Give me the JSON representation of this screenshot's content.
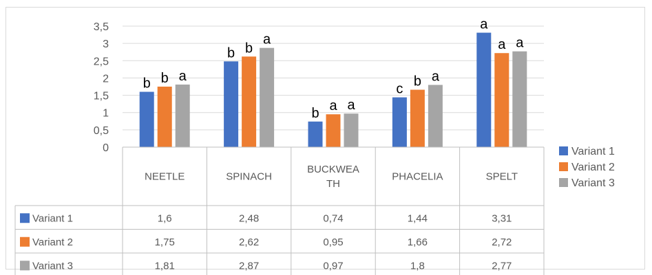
{
  "chart_data": {
    "type": "bar",
    "categories": [
      "NEETLE",
      "SPINACH",
      "BUCKWEATH",
      "PHACELIA",
      "SPELT"
    ],
    "category_display": [
      [
        "NEETLE"
      ],
      [
        "SPINACH"
      ],
      [
        "BUCKWEA",
        "TH"
      ],
      [
        "PHACELIA"
      ],
      [
        "SPELT"
      ]
    ],
    "series": [
      {
        "name": "Variant 1",
        "color": "#4472c4",
        "values": [
          1.6,
          2.48,
          0.74,
          1.44,
          3.31
        ],
        "labels": [
          "1,6",
          "2,48",
          "0,74",
          "1,44",
          "3,31"
        ],
        "significance": [
          "b",
          "b",
          "b",
          "c",
          "a"
        ]
      },
      {
        "name": "Variant 2",
        "color": "#ed7d31",
        "values": [
          1.75,
          2.62,
          0.95,
          1.66,
          2.72
        ],
        "labels": [
          "1,75",
          "2,62",
          "0,95",
          "1,66",
          "2,72"
        ],
        "significance": [
          "b",
          "b",
          "a",
          "b",
          "a"
        ]
      },
      {
        "name": "Variant 3",
        "color": "#a5a5a5",
        "values": [
          1.81,
          2.87,
          0.97,
          1.8,
          2.77
        ],
        "labels": [
          "1,81",
          "2,87",
          "0,97",
          "1,8",
          "2,77"
        ],
        "significance": [
          "a",
          "a",
          "a",
          "a",
          "a"
        ]
      }
    ],
    "ylim": [
      0,
      3.5
    ],
    "yticks": [
      0,
      0.5,
      1,
      1.5,
      2,
      2.5,
      3,
      3.5
    ],
    "ytick_labels": [
      "0",
      "0,5",
      "1",
      "1,5",
      "2",
      "2,5",
      "3",
      "3,5"
    ],
    "grid": true,
    "legend": "right",
    "data_table": true
  }
}
